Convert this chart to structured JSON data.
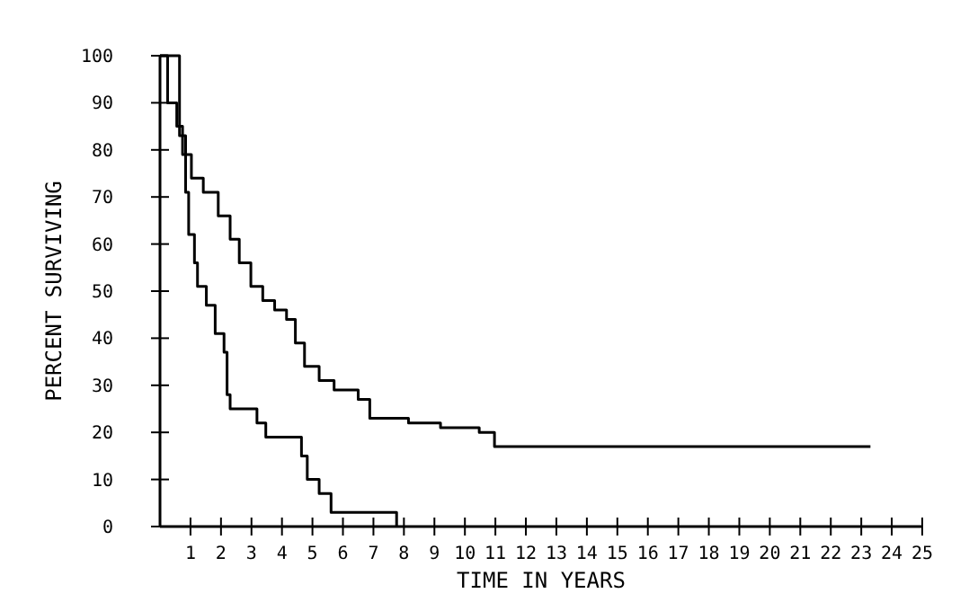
{
  "chart_data": {
    "type": "step",
    "xlabel": "TIME IN YEARS",
    "ylabel": "PERCENT SURVIVING",
    "xlim": [
      0,
      25
    ],
    "xticks": [
      1,
      2,
      3,
      4,
      5,
      6,
      7,
      8,
      9,
      10,
      11,
      12,
      13,
      14,
      15,
      16,
      17,
      18,
      19,
      20,
      21,
      22,
      23,
      24,
      25
    ],
    "ylim": [
      0,
      100
    ],
    "yticks": [
      0,
      10,
      20,
      30,
      40,
      50,
      60,
      70,
      80,
      90,
      100
    ],
    "grid": false,
    "marker": "none",
    "line_style": "solid",
    "series": [
      {
        "color": "#000000",
        "x": [
          0,
          0.25,
          0.55,
          0.74,
          1.03,
          1.42,
          1.91,
          2.3,
          2.6,
          2.98,
          3.37,
          3.76,
          4.15,
          4.44,
          4.74,
          5.22,
          5.71,
          6.5,
          6.88,
          8.15,
          9.2,
          10.47,
          10.97,
          23.3
        ],
        "values": [
          100,
          90,
          85,
          79,
          74,
          71,
          66,
          61,
          56,
          51,
          48,
          46,
          44,
          39,
          34,
          31,
          29,
          27,
          23,
          22,
          21,
          20,
          17,
          17
        ]
      },
      {
        "color": "#000000",
        "x": [
          0,
          0.64,
          0.84,
          0.94,
          1.13,
          1.23,
          1.52,
          1.81,
          2.1,
          2.2,
          2.3,
          3.18,
          3.47,
          4.64,
          4.83,
          5.22,
          5.61,
          7.76
        ],
        "values": [
          100,
          83,
          71,
          62,
          56,
          51,
          47,
          41,
          37,
          28,
          25,
          22,
          19,
          15,
          10,
          7,
          3,
          0
        ]
      }
    ]
  }
}
